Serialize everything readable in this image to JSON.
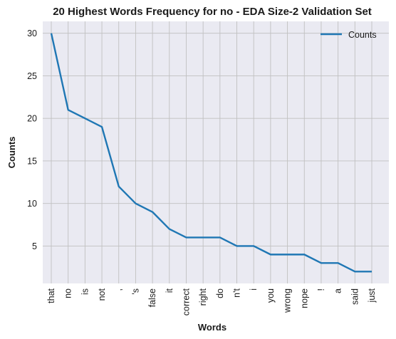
{
  "chart_data": {
    "type": "line",
    "title": "20 Highest Words Frequency for no - EDA Size-2 Validation Set",
    "xlabel": "Words",
    "ylabel": "Counts",
    "categories": [
      "that",
      "no",
      "is",
      "not",
      ",",
      "'s",
      "false",
      "it",
      "correct",
      "right",
      "do",
      "n't",
      "i",
      "you",
      "wrong",
      "nope",
      "!",
      "a",
      "said",
      "just"
    ],
    "series": [
      {
        "name": "Counts",
        "color": "#1f77b4",
        "values": [
          30,
          21,
          20,
          19,
          12,
          10,
          9,
          7,
          6,
          6,
          6,
          5,
          5,
          4,
          4,
          4,
          3,
          3,
          2,
          2
        ]
      }
    ],
    "yticks": [
      5,
      10,
      15,
      20,
      25,
      30
    ],
    "ylim": [
      0.6,
      31.4
    ],
    "grid": true,
    "legend": "top-right",
    "colors": {
      "plot_bg": "#eaeaf2",
      "grid": "#c0c0c0"
    }
  }
}
